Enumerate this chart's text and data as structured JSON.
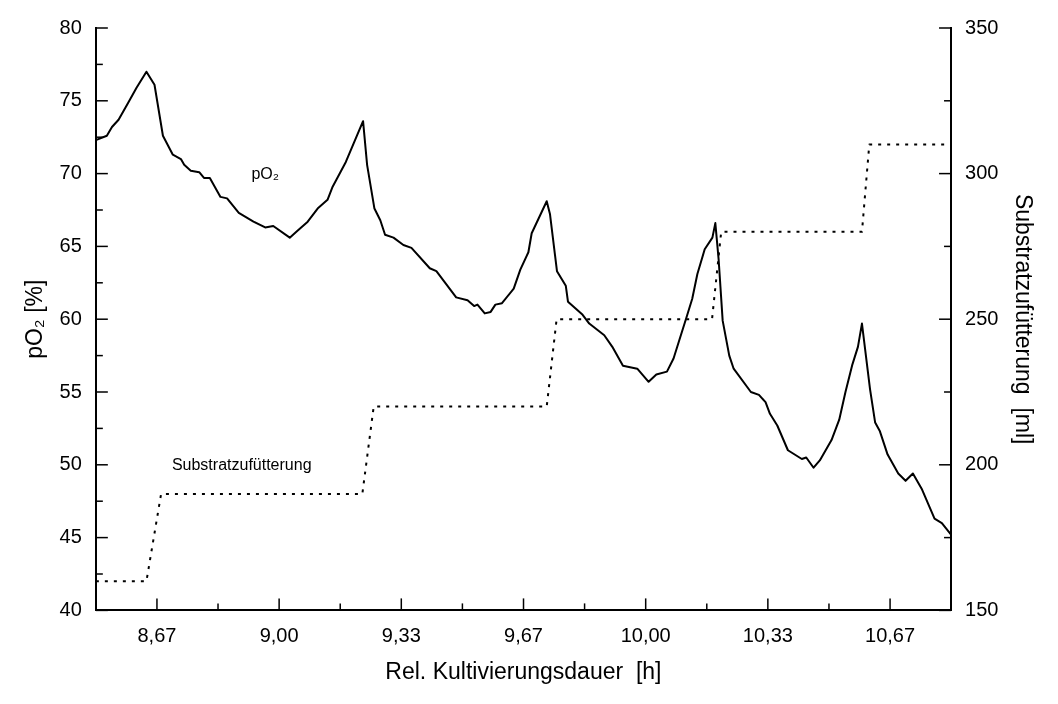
{
  "chart_data": {
    "type": "line",
    "xlabel": "Rel. Kultivierungsdauer  [h]",
    "ylabel": "pO₂ [%]",
    "y2label": "Substratzufütterung  [ml]",
    "legend": false,
    "marker": "none",
    "xlim": [
      8.5,
      10.833
    ],
    "xticks": [
      {
        "value": 8.6667,
        "label": "8,67"
      },
      {
        "value": 8.8333,
        "label": null
      },
      {
        "value": 9,
        "label": "9,00"
      },
      {
        "value": 9.1667,
        "label": null
      },
      {
        "value": 9.3333,
        "label": "9,33"
      },
      {
        "value": 9.5,
        "label": null
      },
      {
        "value": 9.6667,
        "label": "9,67"
      },
      {
        "value": 9.8333,
        "label": null
      },
      {
        "value": 10,
        "label": "10,00"
      },
      {
        "value": 10.1667,
        "label": null
      },
      {
        "value": 10.3333,
        "label": "10,33"
      },
      {
        "value": 10.5,
        "label": null
      },
      {
        "value": 10.6667,
        "label": "10,67"
      }
    ],
    "ylim": [
      40,
      80
    ],
    "yticks": [
      40,
      {
        "value": 42.5,
        "label": null
      },
      45,
      {
        "value": 47.5,
        "label": null
      },
      50,
      {
        "value": 52.5,
        "label": null
      },
      55,
      {
        "value": 57.5,
        "label": null
      },
      60,
      {
        "value": 62.5,
        "label": null
      },
      65,
      {
        "value": 67.5,
        "label": null
      },
      70,
      {
        "value": 72.5,
        "label": null
      },
      75,
      {
        "value": 77.5,
        "label": null
      },
      80
    ],
    "y2lim": [
      150,
      350
    ],
    "y2ticks": [
      150,
      {
        "value": 175,
        "label": null
      },
      200,
      {
        "value": 225,
        "label": null
      },
      250,
      {
        "value": 275,
        "label": null
      },
      300,
      {
        "value": 325,
        "label": null
      },
      350
    ],
    "series": [
      {
        "name": "pO₂",
        "color": "#000000",
        "line_style": "solid",
        "x": [
          8.5,
          8.53,
          8.544,
          8.562,
          8.589,
          8.611,
          8.638,
          8.66,
          8.683,
          8.71,
          8.732,
          8.741,
          8.759,
          8.782,
          8.795,
          8.811,
          8.84,
          8.858,
          8.89,
          8.93,
          8.962,
          8.984,
          9.029,
          9.047,
          9.078,
          9.105,
          9.132,
          9.146,
          9.182,
          9.229,
          9.24,
          9.26,
          9.276,
          9.289,
          9.312,
          9.339,
          9.361,
          9.411,
          9.429,
          9.483,
          9.514,
          9.532,
          9.541,
          9.561,
          9.577,
          9.59,
          9.608,
          9.64,
          9.658,
          9.68,
          9.689,
          9.73,
          9.739,
          9.758,
          9.782,
          9.788,
          9.828,
          9.846,
          9.887,
          9.909,
          9.938,
          9.977,
          10.008,
          10.029,
          10.058,
          10.076,
          10.091,
          10.111,
          10.127,
          10.141,
          10.161,
          10.182,
          10.19,
          10.199,
          10.21,
          10.228,
          10.24,
          10.287,
          10.309,
          10.327,
          10.339,
          10.359,
          10.388,
          10.426,
          10.438,
          10.458,
          10.475,
          10.507,
          10.528,
          10.545,
          10.564,
          10.579,
          10.59,
          10.612,
          10.626,
          10.639,
          10.66,
          10.689,
          10.709,
          10.729,
          10.754,
          10.788,
          10.808,
          10.833
        ],
        "values": [
          72.3,
          72.6,
          73.2,
          73.7,
          74.9,
          75.9,
          77.0,
          76.1,
          72.6,
          71.3,
          71.0,
          70.6,
          70.2,
          70.1,
          69.7,
          69.7,
          68.4,
          68.3,
          67.3,
          66.7,
          66.3,
          66.4,
          65.6,
          66.0,
          66.7,
          67.6,
          68.2,
          69.1,
          70.8,
          73.6,
          70.6,
          67.6,
          66.8,
          65.8,
          65.6,
          65.1,
          64.9,
          63.5,
          63.3,
          61.5,
          61.3,
          60.9,
          61.0,
          60.4,
          60.5,
          61.0,
          61.1,
          62.1,
          63.4,
          64.6,
          65.9,
          68.1,
          67.2,
          63.3,
          62.3,
          61.2,
          60.3,
          59.7,
          58.9,
          58.1,
          56.8,
          56.6,
          55.7,
          56.2,
          56.4,
          57.3,
          58.5,
          60.1,
          61.4,
          63.1,
          64.8,
          65.6,
          66.6,
          64.1,
          59.9,
          57.5,
          56.6,
          55.0,
          54.8,
          54.3,
          53.5,
          52.7,
          51.0,
          50.4,
          50.5,
          49.8,
          50.3,
          51.7,
          53.1,
          55.0,
          56.9,
          58.1,
          59.7,
          55.2,
          52.9,
          52.3,
          50.7,
          49.4,
          48.9,
          49.4,
          48.3,
          46.3,
          46.0,
          45.2
        ]
      },
      {
        "name": "Substratzufütterung",
        "color": "#000000",
        "axis": "y2",
        "line_style": "dotted",
        "x": [
          8.5,
          8.638,
          8.678,
          9.227,
          9.258,
          9.73,
          9.757,
          10.181,
          10.206,
          10.59,
          10.61,
          10.833
        ],
        "values": [
          160,
          160,
          190,
          190,
          220,
          220,
          250,
          250,
          280,
          280,
          310,
          310
        ]
      }
    ]
  }
}
